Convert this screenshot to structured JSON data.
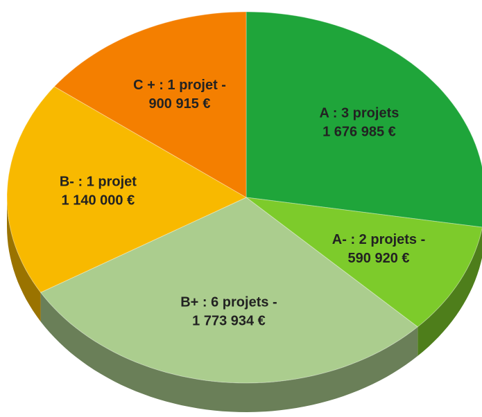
{
  "chart_data": {
    "type": "pie",
    "categories": [
      "A : 3 projets",
      "A- : 2 projets -",
      "B+ : 6 projets -",
      "B- : 1 projet",
      "C + : 1 projet -"
    ],
    "values": [
      1676985,
      590920,
      1773934,
      1140000,
      900915
    ],
    "value_labels": [
      "1 676 985 €",
      "590 920 €",
      "1 773 934 €",
      "1 140 000 €",
      "900 915 €"
    ],
    "colors": [
      "#1fa53a",
      "#7dcb2b",
      "#abcd8e",
      "#f8b900",
      "#f47f00"
    ]
  }
}
